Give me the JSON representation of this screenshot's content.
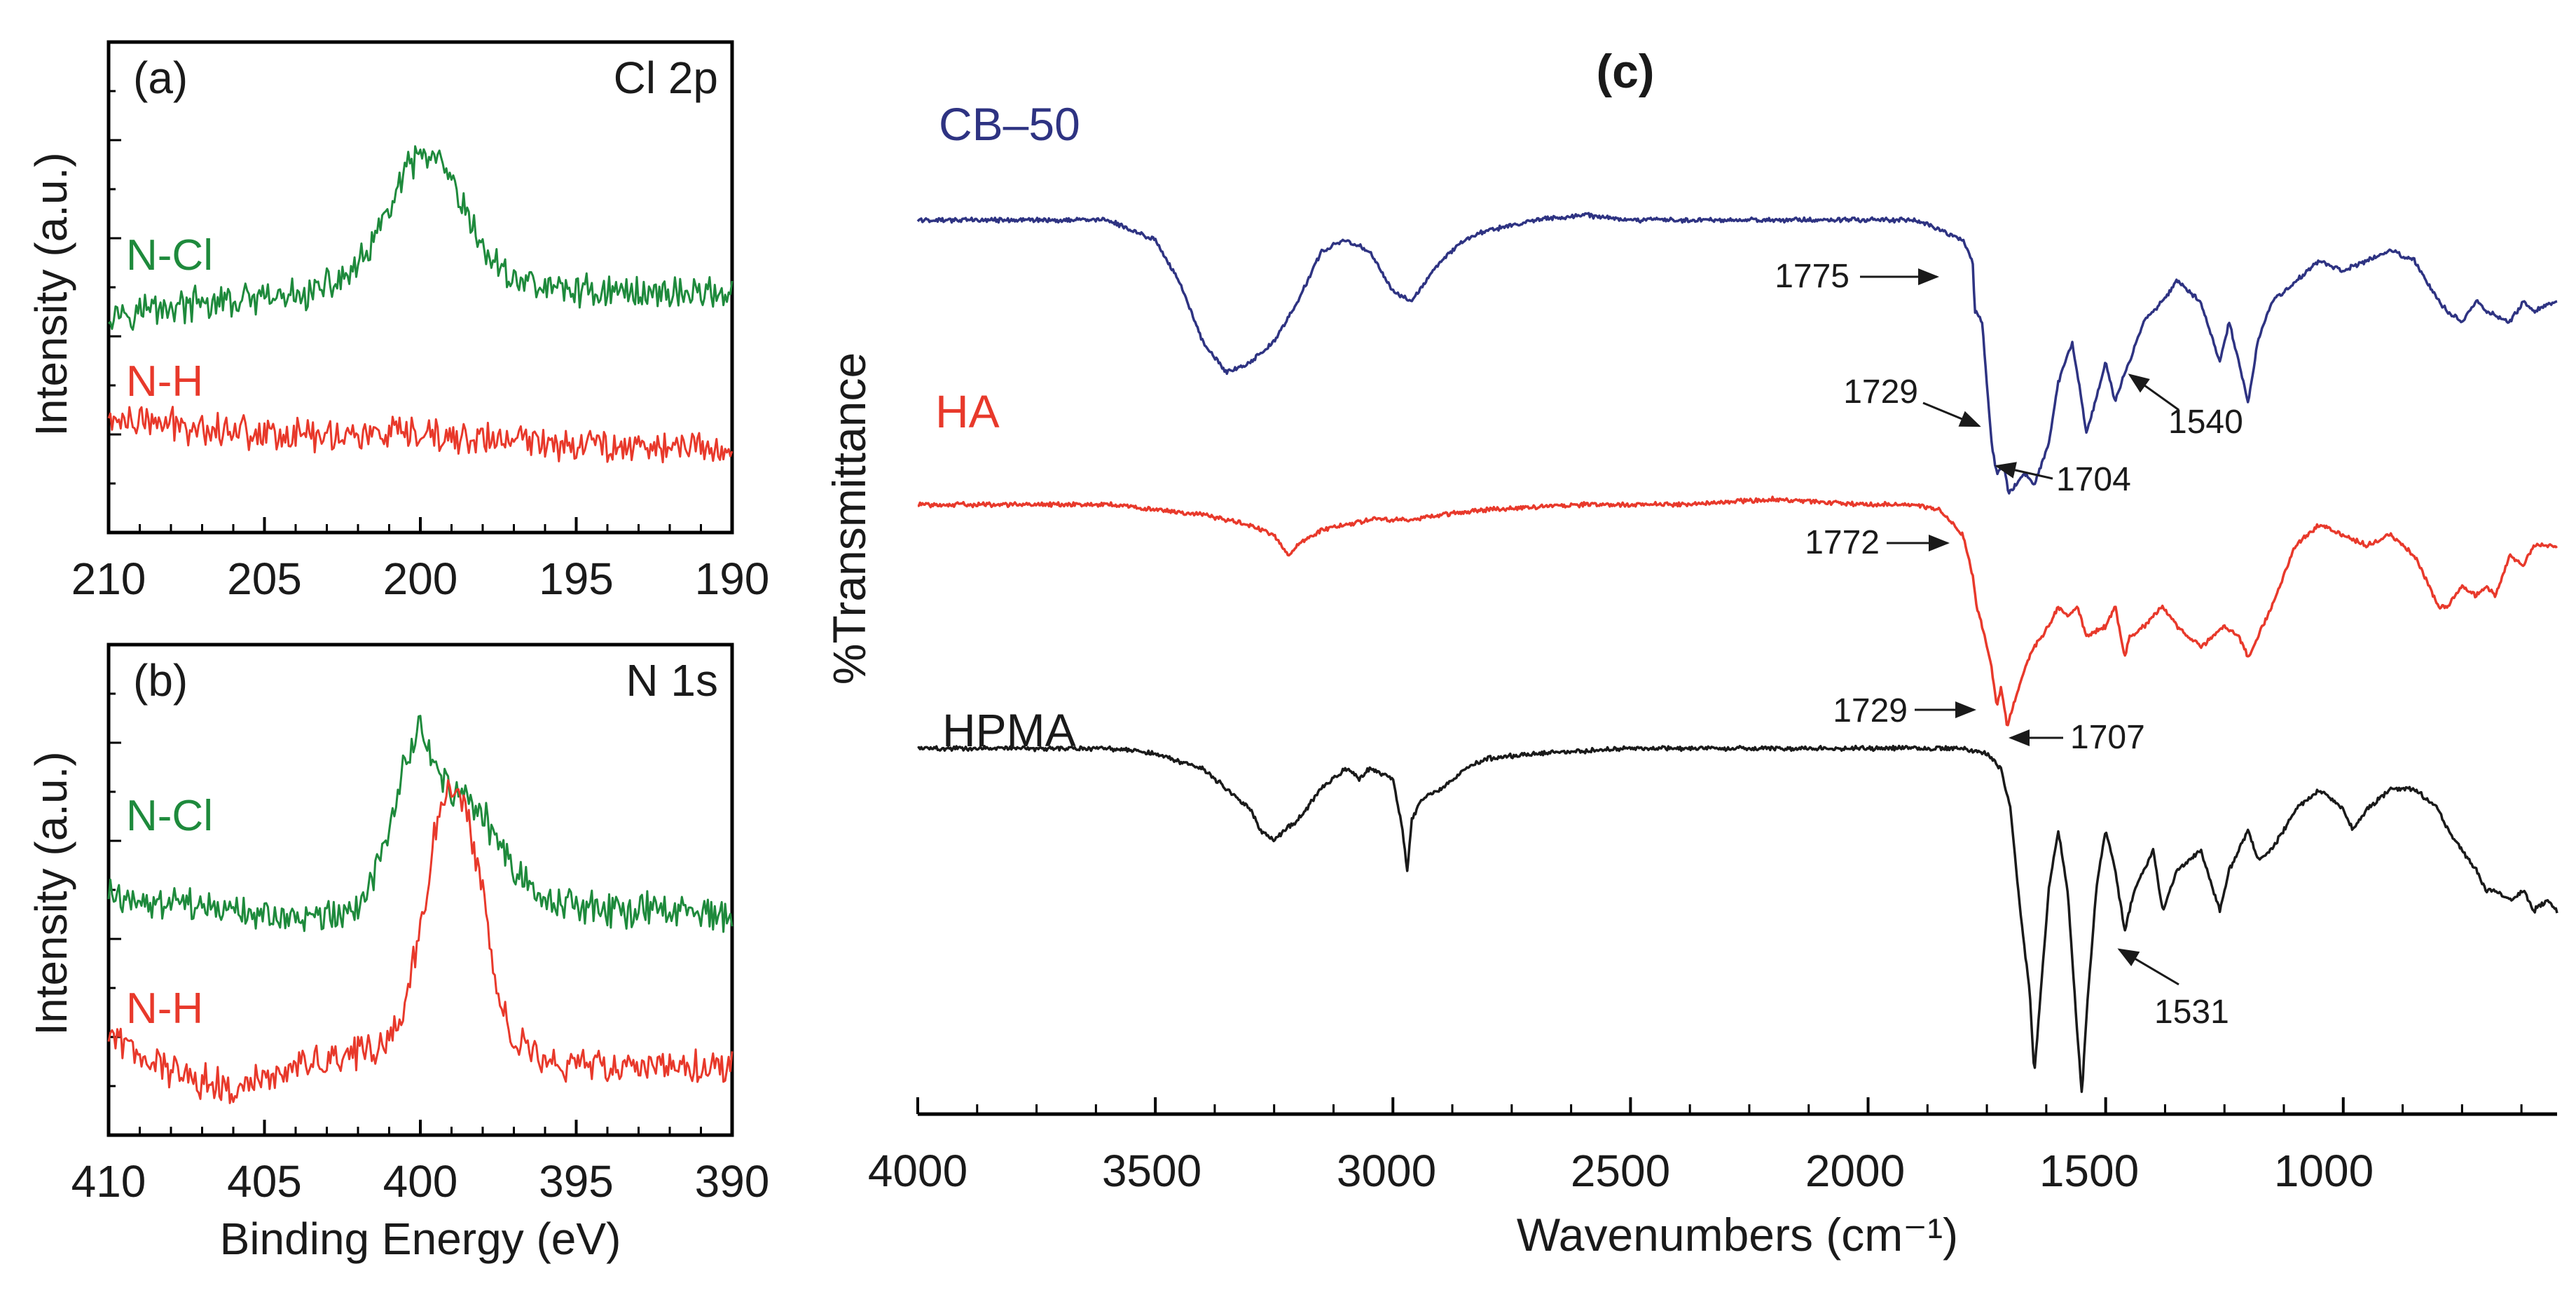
{
  "chart_data": [
    {
      "panel": "(a)",
      "type": "line",
      "title": "Cl 2p",
      "xlabel": "",
      "ylabel": "Intensity (a.u.)",
      "xlim": [
        210,
        190
      ],
      "ylim": [
        0,
        10
      ],
      "xticks": [
        210,
        205,
        200,
        195,
        190
      ],
      "series": [
        {
          "name": "N-Cl",
          "color": "#1e8a3c",
          "x": [
            210,
            208,
            206,
            204,
            203,
            202,
            201.5,
            201,
            200.5,
            200,
            199.5,
            199,
            198.5,
            198,
            197.5,
            197,
            196,
            195,
            193,
            191,
            190
          ],
          "y": [
            4.5,
            4.6,
            4.7,
            4.8,
            5.0,
            5.4,
            5.9,
            6.6,
            7.3,
            7.7,
            7.6,
            7.1,
            6.4,
            5.8,
            5.4,
            5.2,
            5.0,
            4.95,
            4.9,
            4.9,
            4.9
          ]
        },
        {
          "name": "N-H",
          "color": "#e8392b",
          "x": [
            210,
            208,
            206,
            204,
            202,
            200,
            198,
            196,
            194,
            192,
            190
          ],
          "y": [
            2.3,
            2.2,
            2.1,
            2.0,
            2.0,
            1.95,
            1.9,
            1.85,
            1.8,
            1.75,
            1.7
          ]
        }
      ]
    },
    {
      "panel": "(b)",
      "type": "line",
      "title": "N 1s",
      "xlabel": "Binding Energy (eV)",
      "ylabel": "Intensity (a.u.)",
      "xlim": [
        410,
        390
      ],
      "ylim": [
        0,
        10
      ],
      "xticks": [
        410,
        405,
        400,
        395,
        390
      ],
      "series": [
        {
          "name": "N-Cl",
          "color": "#1e8a3c",
          "x": [
            410,
            408,
            406,
            404,
            402,
            401,
            400.5,
            400,
            399.5,
            399,
            398.5,
            398,
            397,
            396,
            394,
            392,
            390
          ],
          "y": [
            4.9,
            4.7,
            4.5,
            4.4,
            4.6,
            6.0,
            7.6,
            8.2,
            7.5,
            6.8,
            6.9,
            6.5,
            5.4,
            4.8,
            4.6,
            4.55,
            4.5
          ]
        },
        {
          "name": "N-H",
          "color": "#e8392b",
          "x": [
            410,
            408,
            406,
            404,
            402,
            401,
            400.5,
            400,
            399.5,
            399,
            398.5,
            398,
            397.5,
            397,
            396,
            394,
            392,
            390
          ],
          "y": [
            2.0,
            1.3,
            0.9,
            1.4,
            1.7,
            1.9,
            2.6,
            4.2,
            6.3,
            7.1,
            6.6,
            4.8,
            3.0,
            1.9,
            1.5,
            1.4,
            1.4,
            1.4
          ]
        }
      ]
    },
    {
      "panel": "(c)",
      "type": "line",
      "title": "(c)",
      "xlabel": "Wavenumbers (cm⁻¹)",
      "ylabel": "%Transmittance",
      "xlim": [
        4000,
        550
      ],
      "ylim": [
        0,
        100
      ],
      "xticks": [
        4000,
        3500,
        3000,
        2500,
        2000,
        1500,
        1000
      ],
      "series": [
        {
          "name": "CB-50",
          "color": "#2e3382",
          "x": [
            4000,
            3800,
            3600,
            3500,
            3450,
            3400,
            3350,
            3300,
            3250,
            3200,
            3150,
            3100,
            3050,
            3000,
            2960,
            2930,
            2900,
            2850,
            2800,
            2700,
            2600,
            2500,
            2300,
            2100,
            1900,
            1850,
            1800,
            1780,
            1775,
            1760,
            1750,
            1740,
            1729,
            1715,
            1704,
            1690,
            1670,
            1650,
            1620,
            1600,
            1570,
            1550,
            1540,
            1500,
            1480,
            1460,
            1450,
            1420,
            1380,
            1350,
            1300,
            1260,
            1240,
            1200,
            1180,
            1150,
            1100,
            1050,
            1000,
            950,
            900,
            850,
            800,
            780,
            750,
            720,
            700,
            650,
            620,
            600,
            550
          ],
          "y": [
            88,
            88,
            88,
            86,
            82,
            76,
            73,
            74,
            76,
            80,
            85,
            86,
            85,
            81,
            80,
            82,
            84,
            86,
            87,
            88,
            88.5,
            88,
            88,
            88,
            88,
            87,
            86,
            84,
            79,
            78,
            72,
            66,
            63,
            64,
            61,
            62,
            63,
            62,
            66,
            72,
            76,
            70,
            67,
            74,
            70,
            73,
            74,
            78,
            80,
            82,
            80,
            74,
            78,
            70,
            76,
            80,
            82,
            84,
            83,
            84,
            85,
            84,
            80,
            79,
            78,
            80,
            79,
            78,
            80,
            79,
            80
          ]
        },
        {
          "name": "HA",
          "color": "#e8392b",
          "x": [
            4000,
            3800,
            3600,
            3400,
            3300,
            3250,
            3220,
            3200,
            3150,
            3100,
            3050,
            3000,
            2950,
            2900,
            2800,
            2600,
            2400,
            2200,
            2000,
            1900,
            1850,
            1800,
            1780,
            1772,
            1760,
            1750,
            1740,
            1729,
            1720,
            1707,
            1690,
            1670,
            1650,
            1620,
            1600,
            1580,
            1560,
            1540,
            1500,
            1480,
            1460,
            1450,
            1420,
            1380,
            1350,
            1300,
            1250,
            1220,
            1200,
            1150,
            1100,
            1050,
            1000,
            950,
            900,
            850,
            800,
            780,
            750,
            720,
            700,
            680,
            650,
            620,
            600,
            550
          ],
          "y": [
            60,
            60,
            60,
            59,
            58,
            57,
            55,
            56,
            57.5,
            58,
            58.5,
            58.5,
            58.5,
            59,
            59.5,
            60,
            60,
            60.5,
            60,
            60,
            59.5,
            57,
            53,
            50,
            48,
            46,
            44,
            40,
            42,
            38,
            41,
            44,
            46,
            48,
            50,
            49,
            50,
            47,
            48,
            50,
            45,
            47,
            48,
            50,
            48,
            46,
            48,
            47,
            45,
            50,
            56,
            58,
            57,
            56,
            57,
            55,
            50,
            50,
            52,
            51,
            52,
            51,
            55,
            54,
            56,
            56
          ]
        },
        {
          "name": "HPMA",
          "color": "#1a1a1a",
          "x": [
            4000,
            3800,
            3600,
            3500,
            3400,
            3350,
            3300,
            3280,
            3250,
            3200,
            3150,
            3100,
            3070,
            3050,
            3000,
            2980,
            2970,
            2960,
            2940,
            2900,
            2870,
            2850,
            2800,
            2700,
            2500,
            2300,
            2100,
            1900,
            1800,
            1750,
            1720,
            1700,
            1680,
            1660,
            1650,
            1640,
            1620,
            1600,
            1580,
            1560,
            1550,
            1540,
            1520,
            1500,
            1480,
            1460,
            1440,
            1420,
            1400,
            1380,
            1350,
            1300,
            1260,
            1240,
            1200,
            1180,
            1150,
            1100,
            1050,
            1000,
            980,
            950,
            900,
            850,
            800,
            780,
            750,
            720,
            700,
            680,
            650,
            620,
            600,
            570,
            550
          ],
          "y": [
            36,
            36,
            36,
            35.5,
            34,
            32,
            30,
            28,
            27,
            29,
            32,
            34,
            33,
            34,
            33,
            28,
            24,
            29,
            31,
            32,
            33,
            34,
            35,
            35.5,
            36,
            36,
            36,
            36,
            36,
            35.5,
            34,
            30,
            20,
            12,
            4,
            10,
            22,
            28,
            22,
            8,
            2,
            10,
            22,
            28,
            24,
            18,
            22,
            24,
            26,
            20,
            24,
            26,
            20,
            24,
            28,
            25,
            26,
            30,
            32,
            30,
            28,
            30,
            32,
            32,
            30,
            28,
            26,
            24,
            22,
            22,
            21,
            22,
            20,
            21,
            20
          ]
        }
      ],
      "annotations": [
        "1775",
        "1729",
        "1540",
        "1704",
        "1772",
        "1729",
        "1707",
        "1531"
      ]
    }
  ],
  "panel_a": {
    "label": "(a)",
    "title": "Cl 2p",
    "ylabel": "Intensity (a.u.)",
    "tick_labels": [
      "210",
      "205",
      "200",
      "195",
      "190"
    ],
    "legend": [
      "N-Cl",
      "N-H"
    ]
  },
  "panel_b": {
    "label": "(b)",
    "title": "N 1s",
    "ylabel": "Intensity (a.u.)",
    "xlabel": "Binding Energy (eV)",
    "tick_labels": [
      "410",
      "405",
      "400",
      "395",
      "390"
    ],
    "legend": [
      "N-Cl",
      "N-H"
    ]
  },
  "panel_c": {
    "label": "(c)",
    "ylabel": "%Transmittance",
    "xlabel": "Wavenumbers (cm⁻¹)",
    "tick_labels": [
      "4000",
      "3500",
      "3000",
      "2500",
      "2000",
      "1500",
      "1000"
    ],
    "series_labels": [
      "CB–50",
      "HA",
      "HPMA"
    ],
    "annotations": {
      "cb_1775": "1775",
      "cb_1729": "1729",
      "cb_1540": "1540",
      "cb_1704": "1704",
      "ha_1772": "1772",
      "ha_1729": "1729",
      "ha_1707": "1707",
      "hpma_1531": "1531"
    }
  },
  "colors": {
    "green": "#1e8a3c",
    "red": "#e8392b",
    "navy": "#2e3382",
    "black": "#1a1a1a"
  }
}
